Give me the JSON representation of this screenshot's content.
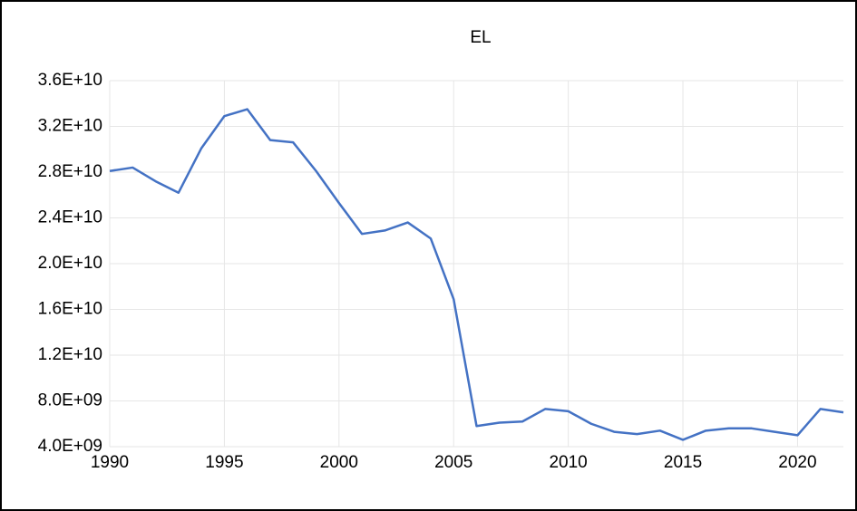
{
  "chart_data": {
    "type": "line",
    "title": "EL",
    "x": [
      1990,
      1991,
      1992,
      1993,
      1994,
      1995,
      1996,
      1997,
      1998,
      1999,
      2000,
      2001,
      2002,
      2003,
      2004,
      2005,
      2006,
      2007,
      2008,
      2009,
      2010,
      2011,
      2012,
      2013,
      2014,
      2015,
      2016,
      2017,
      2018,
      2019,
      2020,
      2021,
      2022
    ],
    "series": [
      {
        "color": "#4472c4",
        "values": [
          28100000000,
          28400000000,
          27200000000,
          26200000000,
          30100000000,
          32900000000,
          33500000000,
          30800000000,
          30600000000,
          28100000000,
          25300000000,
          22600000000,
          22900000000,
          23600000000,
          22200000000,
          16900000000,
          5800000000,
          6100000000,
          6200000000,
          7300000000,
          7100000000,
          6000000000,
          5300000000,
          5100000000,
          5400000000,
          4600000000,
          5400000000,
          5600000000,
          5600000000,
          5300000000,
          5000000000,
          7300000000,
          7000000000
        ]
      }
    ],
    "xlim": [
      1990,
      2022
    ],
    "xticks": [
      1990,
      1995,
      2000,
      2005,
      2010,
      2015,
      2020
    ],
    "ylim": [
      4000000000,
      36000000000
    ],
    "yticks": [
      {
        "value": 4000000000,
        "label": "4.0E+09"
      },
      {
        "value": 8000000000,
        "label": "8.0E+09"
      },
      {
        "value": 12000000000,
        "label": "1.2E+10"
      },
      {
        "value": 16000000000,
        "label": "1.6E+10"
      },
      {
        "value": 20000000000,
        "label": "2.0E+10"
      },
      {
        "value": 24000000000,
        "label": "2.4E+10"
      },
      {
        "value": 28000000000,
        "label": "2.8E+10"
      },
      {
        "value": 32000000000,
        "label": "3.2E+10"
      },
      {
        "value": 36000000000,
        "label": "3.6E+10"
      }
    ],
    "grid": true
  }
}
